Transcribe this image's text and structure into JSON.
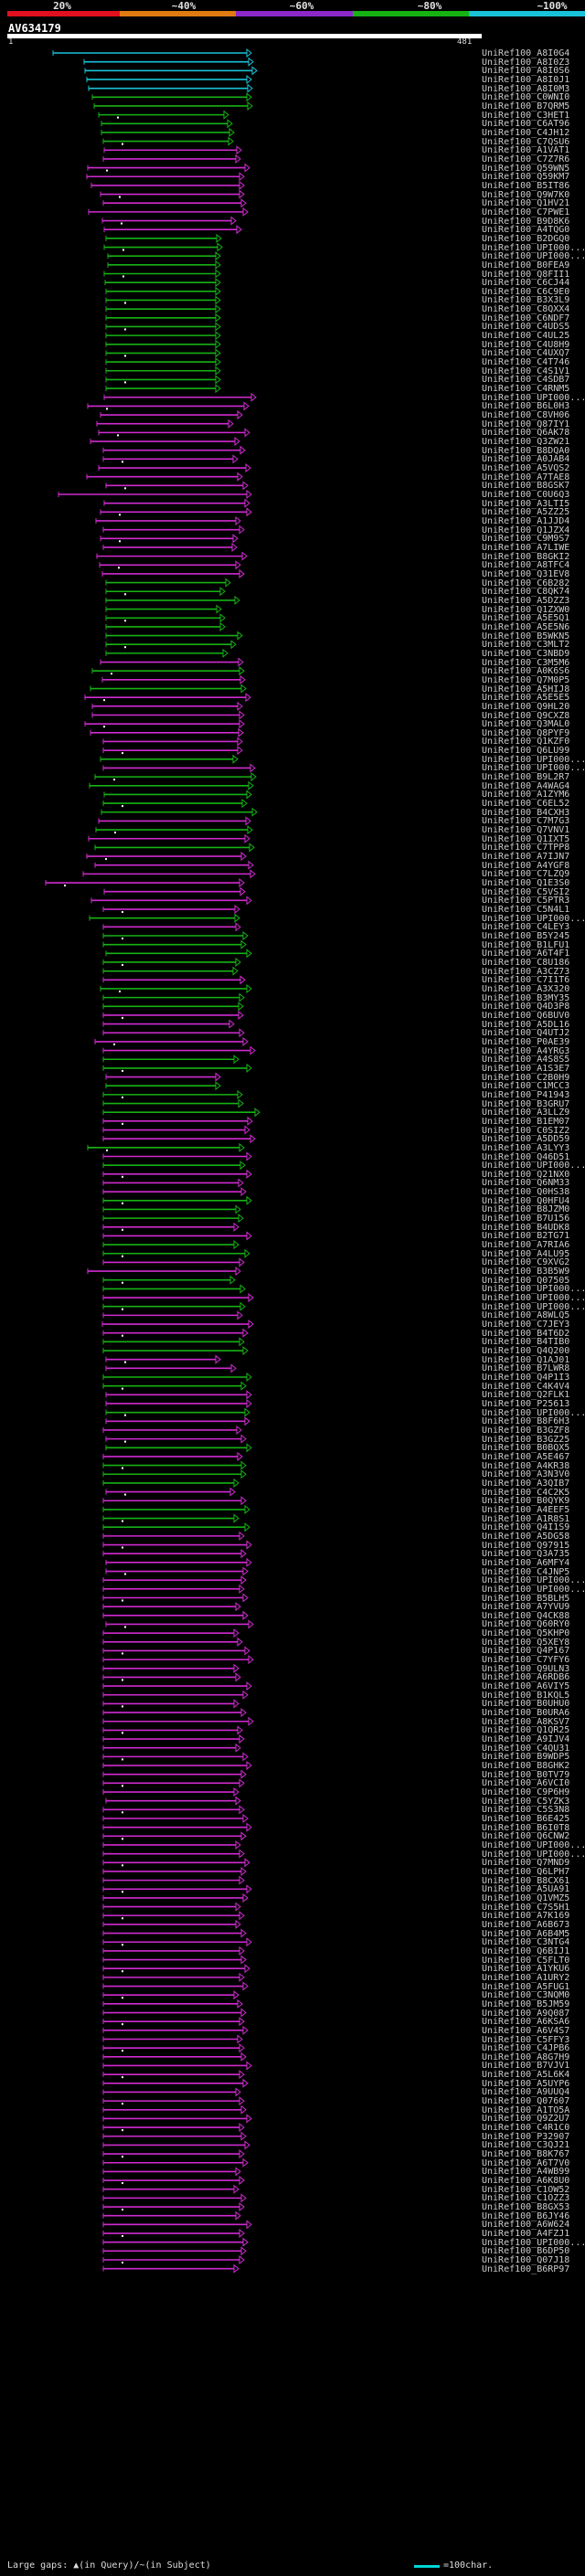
{
  "query": {
    "name": "AV634179",
    "start": "1",
    "end": "481"
  },
  "scale": {
    "labels": [
      "20%",
      "~40%",
      "~60%",
      "~80%",
      "~100%"
    ],
    "colors": [
      "#e0101e",
      "#e07b12",
      "#8b28c7",
      "#16b214",
      "#19c2d8"
    ]
  },
  "colors": {
    "cyan": "#19c2d8",
    "green": "#16b214",
    "magenta": "#cf2bd0"
  },
  "legend": {
    "gaps": "Large gaps: ▲(in Query)/~(in Subject)",
    "scale": "=100char."
  },
  "hits": [
    "UniRef100_A8I0G4",
    "UniRef100_A8I0Z3",
    "UniRef100_A8I0S6",
    "UniRef100_A8I0J1",
    "UniRef100_A8I0M3",
    "UniRef100_C0WNI0",
    "UniRef100_B7QRM5",
    "UniRef100_C3HET1",
    "UniRef100_C6AT96",
    "UniRef100_C4JH12",
    "UniRef100_C7QSU6",
    "UniRef100_A1VAT1",
    "UniRef100_C7Z7R6",
    "UniRef100_Q59WN5",
    "UniRef100_Q59KM7",
    "UniRef100_B5IT86",
    "UniRef100_Q9W7K0",
    "UniRef100_Q1HV21",
    "UniRef100_C7PWE1",
    "UniRef100_B9D8K6",
    "UniRef100_A4TQG0",
    "UniRef100_B2DGQ0",
    "UniRef100_UPI000...",
    "UniRef100_UPI000...",
    "UniRef100_B0FEA9",
    "UniRef100_Q8FII1",
    "UniRef100_C6CJ44",
    "UniRef100_C6C9E0",
    "UniRef100_B3X3L9",
    "UniRef100_C8QXX4",
    "UniRef100_C6NDF7",
    "UniRef100_C4UDS5",
    "UniRef100_C4UL25",
    "UniRef100_C4U8H9",
    "UniRef100_C4UXQ7",
    "UniRef100_C4T746",
    "UniRef100_C4S1V1",
    "UniRef100_C4SDB7",
    "UniRef100_C4RNM5",
    "UniRef100_UPI000...",
    "UniRef100_B6L0H3",
    "UniRef100_C8VH06",
    "UniRef100_Q87IY1",
    "UniRef100_Q6AK78",
    "UniRef100_Q3ZW21",
    "UniRef100_B8DQA0",
    "UniRef100_A0JAB4",
    "UniRef100_A5VQS2",
    "UniRef100_A7TAE8",
    "UniRef100_B8GSK7",
    "UniRef100_C0U6Q3",
    "UniRef100_A3LTI5",
    "UniRef100_A5ZZ25",
    "UniRef100_A1JJD4",
    "UniRef100_Q1JZX4",
    "UniRef100_C9M9S7",
    "UniRef100_A7LIWE",
    "UniRef100_B8GKI2",
    "UniRef100_A8TFC4",
    "UniRef100_Q31EV8",
    "UniRef100_C6B282",
    "UniRef100_C8QK74",
    "UniRef100_A5DZZ3",
    "UniRef100_Q1ZXW0",
    "UniRef100_A5E5Q1",
    "UniRef100_A5E5N6",
    "UniRef100_B5WKN5",
    "UniRef100_C3MLT2",
    "UniRef100_C3NBD9",
    "UniRef100_C3M5M6",
    "UniRef100_A0K6S6",
    "UniRef100_Q7M0P5",
    "UniRef100_A5HIJ8",
    "UniRef100_A5E5E5",
    "UniRef100_Q9HL20",
    "UniRef100_Q9CXZ8",
    "UniRef100_Q3MAL0",
    "UniRef100_Q8PYF9",
    "UniRef100_Q1KZF0",
    "UniRef100_Q6LU99",
    "UniRef100_UPI000...",
    "UniRef100_UPI000...",
    "UniRef100_B9L2R7",
    "UniRef100_A4WAG4",
    "UniRef100_A1ZYM6",
    "UniRef100_C6EL52",
    "UniRef100_B4CXH3",
    "UniRef100_C7M7G3",
    "UniRef100_Q7VNV1",
    "UniRef100_Q1IXT5",
    "UniRef100_C7TPP8",
    "UniRef100_A7IJN7",
    "UniRef100_A4YGF8",
    "UniRef100_C7LZQ9",
    "UniRef100_Q1E3S0",
    "UniRef100_C5VSI2",
    "UniRef100_C5PTR3",
    "UniRef100_C5N4L1",
    "UniRef100_UPI000...",
    "UniRef100_C4LEY3",
    "UniRef100_B5Y245",
    "UniRef100_B1LFU1",
    "UniRef100_A6T4F1",
    "UniRef100_C8U186",
    "UniRef100_A3CZ73",
    "UniRef100_C7I1T6",
    "UniRef100_A3X320",
    "UniRef100_B3MY35",
    "UniRef100_Q4D3P8",
    "UniRef100_Q6BUV0",
    "UniRef100_A5DL16",
    "UniRef100_Q4UTJ2",
    "UniRef100_P0AE39",
    "UniRef100_A4YRG3",
    "UniRef100_A4S8S5",
    "UniRef100_A1S3E7",
    "UniRef100_C2B0H9",
    "UniRef100_C1MCC3",
    "UniRef100_P41943",
    "UniRef100_B3GRU7",
    "UniRef100_A3LLZ9",
    "UniRef100_B1EM07",
    "UniRef100_C0SIZ2",
    "UniRef100_A5DD59",
    "UniRef100_A3LYY3",
    "UniRef100_Q46D51",
    "UniRef100_UPI000...",
    "UniRef100_Q21NX0",
    "UniRef100_Q6NM33",
    "UniRef100_Q0HS38",
    "UniRef100_Q0HFU4",
    "UniRef100_B8JZM0",
    "UniRef100_B7U156",
    "UniRef100_B4UDK8",
    "UniRef100_B2TG71",
    "UniRef100_A7RIA6",
    "UniRef100_A4LU95",
    "UniRef100_C9XVG2",
    "UniRef100_B3B5W9",
    "UniRef100_Q07505",
    "UniRef100_UPI000...",
    "UniRef100_UPI000...",
    "UniRef100_UPI000...",
    "UniRef100_A8WLQ5",
    "UniRef100_C7JEY3",
    "UniRef100_B4T6D2",
    "UniRef100_B4TIB0",
    "UniRef100_Q4Q200",
    "UniRef100_Q1AJ01",
    "UniRef100_B7LWR8",
    "UniRef100_Q4P1I3",
    "UniRef100_C4K4V4",
    "UniRef100_Q2FLK1",
    "UniRef100_P25613",
    "UniRef100_UPI000...",
    "UniRef100_B8F6H3",
    "UniRef100_B3GZF8",
    "UniRef100_B3GZ25",
    "UniRef100_B0BQX5",
    "UniRef100_A5E467",
    "UniRef100_A4KR38",
    "UniRef100_A3N3V0",
    "UniRef100_A3QIB7",
    "UniRef100_C4C2K5",
    "UniRef100_B0QYK9",
    "UniRef100_A4EEF5",
    "UniRef100_A1R8S1",
    "UniRef100_Q4I1S9",
    "UniRef100_A5DG58",
    "UniRef100_Q97915",
    "UniRef100_Q3A735",
    "UniRef100_A6MFY4",
    "UniRef100_C4JNP5",
    "UniRef100_UPI000...",
    "UniRef100_UPI000...",
    "UniRef100_B5BLH5",
    "UniRef100_A7YVU9",
    "UniRef100_Q4CK88",
    "UniRef100_Q60RY0",
    "UniRef100_Q5KHP0",
    "UniRef100_Q5XEY8",
    "UniRef100_Q4P167",
    "UniRef100_C7YFY6",
    "UniRef100_Q9ULN3",
    "UniRef100_A6RDB6",
    "UniRef100_A6VIY5",
    "UniRef100_B1KQL5",
    "UniRef100_B0UHU0",
    "UniRef100_B0URA6",
    "UniRef100_A8KSV7",
    "UniRef100_Q1QR25",
    "UniRef100_A9IJV4",
    "UniRef100_C4QU31",
    "UniRef100_B9WDP5",
    "UniRef100_B8GHK2",
    "UniRef100_B0TV79",
    "UniRef100_A6VCI0",
    "UniRef100_C9P6H9",
    "UniRef100_C5YZK3",
    "UniRef100_C5S3N8",
    "UniRef100_B6E425",
    "UniRef100_B6I0T8",
    "UniRef100_Q6CNW2",
    "UniRef100_UPI000...",
    "UniRef100_UPI000...",
    "UniRef100_Q7MND9",
    "UniRef100_Q6LPH7",
    "UniRef100_B8CX61",
    "UniRef100_A5UA91",
    "UniRef100_Q1VMZ5",
    "UniRef100_C7S5H1",
    "UniRef100_A7K169",
    "UniRef100_A6B673",
    "UniRef100_A6B4M5",
    "UniRef100_C3NTG4",
    "UniRef100_Q6BIJ1",
    "UniRef100_C5FLT0",
    "UniRef100_A1YKU6",
    "UniRef100_A1URY2",
    "UniRef100_A5FUG1",
    "UniRef100_C3NQM0",
    "UniRef100_B5JM59",
    "UniRef100_A9Q087",
    "UniRef100_A6KSA6",
    "UniRef100_A6V4S7",
    "UniRef100_C5FFY3",
    "UniRef100_C4JPB6",
    "UniRef100_A8G7H9",
    "UniRef100_B7VJV1",
    "UniRef100_A5L6K4",
    "UniRef100_A5UYP6",
    "UniRef100_A9UUQ4",
    "UniRef100_Q07607",
    "UniRef100_A1TO5A",
    "UniRef100_Q9Z2U7",
    "UniRef100_C4R1C0",
    "UniRef100_P32907",
    "UniRef100_C3QJ21",
    "UniRef100_B8K767",
    "UniRef100_A6T7V0",
    "UniRef100_A4WB99",
    "UniRef100_A6K8U0",
    "UniRef100_C1OW52",
    "UniRef100_C1OZZ3",
    "UniRef100_B8GX53",
    "UniRef100_B6JY46",
    "UniRef100_A6W624",
    "UniRef100_A4FZJ1",
    "UniRef100_UPI000...",
    "UniRef100_B6DP50",
    "UniRef100_Q07J18",
    "UniRef100_B6RP97"
  ]
}
